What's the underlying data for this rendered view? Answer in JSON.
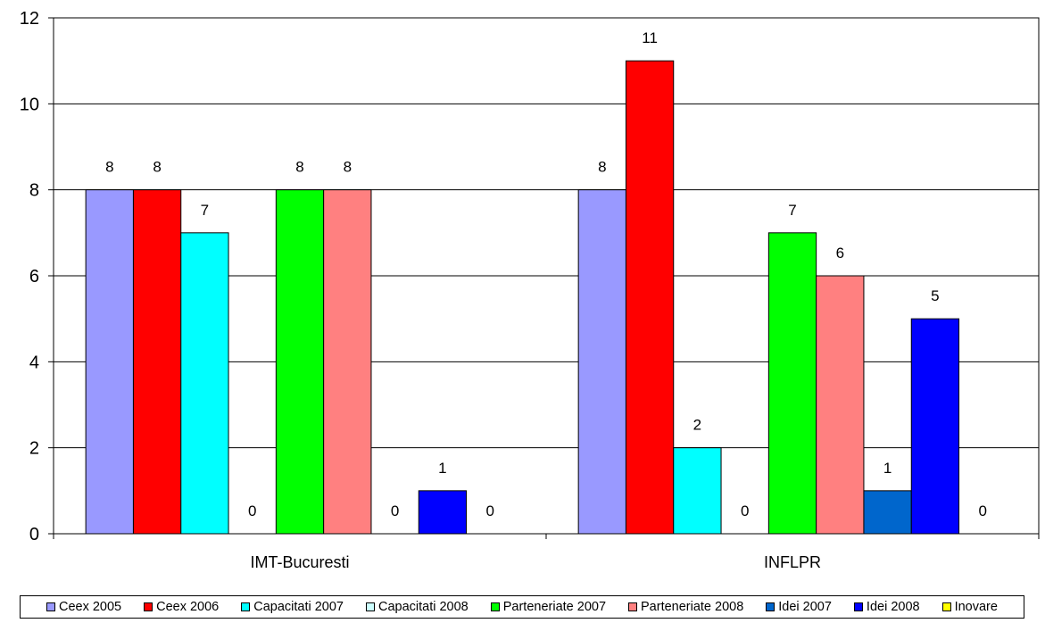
{
  "chart_data": {
    "type": "bar",
    "categories": [
      "IMT-Bucuresti",
      "INFLPR"
    ],
    "ylim": [
      0,
      12
    ],
    "yticks": [
      0,
      2,
      4,
      6,
      8,
      10,
      12
    ],
    "grid": true,
    "legend_position": "bottom",
    "series": [
      {
        "name": "Ceex 2005",
        "color": "#9999ff",
        "values": [
          8,
          8
        ]
      },
      {
        "name": "Ceex 2006",
        "color": "#ff0000",
        "values": [
          8,
          11
        ]
      },
      {
        "name": "Capacitati 2007",
        "color": "#00ffff",
        "values": [
          7,
          2
        ]
      },
      {
        "name": "Capacitati 2008",
        "color": "#ccffff",
        "values": [
          0,
          0
        ]
      },
      {
        "name": "Parteneriate 2007",
        "color": "#00ff00",
        "values": [
          8,
          7
        ]
      },
      {
        "name": "Parteneriate 2008",
        "color": "#ff8080",
        "values": [
          8,
          6
        ]
      },
      {
        "name": "Idei 2007",
        "color": "#0066cc",
        "values": [
          0,
          1
        ]
      },
      {
        "name": "Idei 2008",
        "color": "#0000ff",
        "values": [
          1,
          5
        ]
      },
      {
        "name": "Inovare",
        "color": "#ffff00",
        "values": [
          0,
          0
        ]
      }
    ]
  }
}
